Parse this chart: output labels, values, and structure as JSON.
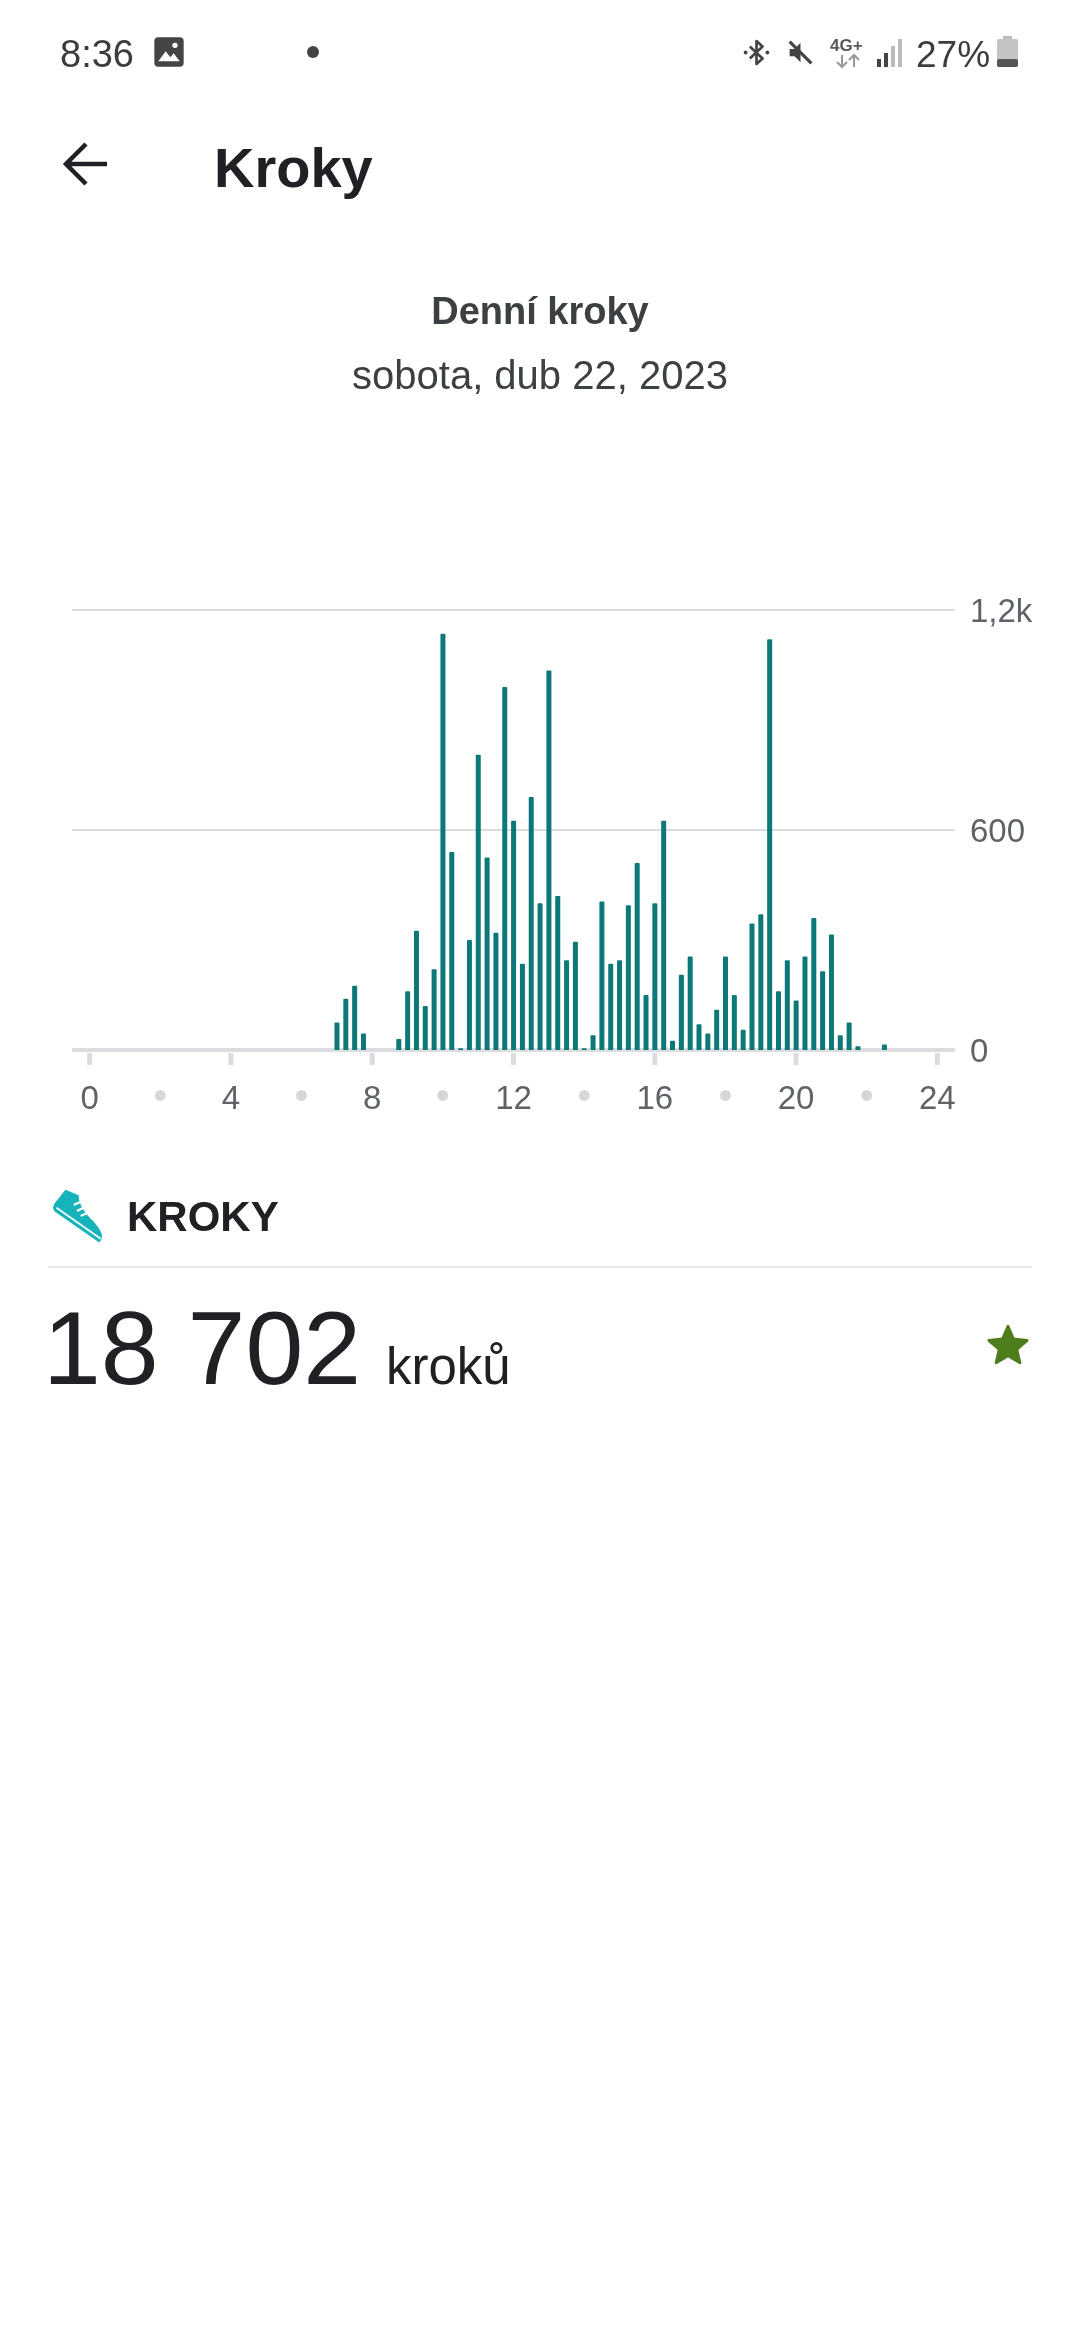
{
  "chart_data": {
    "type": "bar",
    "title": "Denní kroky",
    "subtitle": "sobota, dub 22, 2023",
    "x": [
      7,
      7.25,
      7.5,
      7.75,
      8.75,
      9,
      9.25,
      9.5,
      9.75,
      10,
      10.25,
      10.5,
      10.75,
      11,
      11.25,
      11.5,
      11.75,
      12,
      12.25,
      12.5,
      12.75,
      13,
      13.25,
      13.5,
      13.75,
      14,
      14.25,
      14.5,
      14.75,
      15,
      15.25,
      15.5,
      15.75,
      16,
      16.25,
      16.5,
      16.75,
      17,
      17.25,
      17.5,
      17.75,
      18,
      18.25,
      18.5,
      18.75,
      19,
      19.25,
      19.5,
      19.75,
      20,
      20.25,
      20.5,
      20.75,
      21,
      21.25,
      21.5,
      21.75,
      22.5
    ],
    "values": [
      75,
      140,
      175,
      45,
      30,
      160,
      325,
      120,
      220,
      1135,
      540,
      5,
      300,
      805,
      525,
      320,
      990,
      625,
      235,
      690,
      400,
      1035,
      420,
      245,
      295,
      5,
      40,
      405,
      235,
      245,
      395,
      510,
      150,
      400,
      625,
      25,
      205,
      255,
      70,
      45,
      110,
      255,
      150,
      55,
      345,
      370,
      1120,
      160,
      245,
      135,
      255,
      360,
      215,
      315,
      40,
      75,
      10,
      15
    ],
    "color": "#0c7878",
    "xlim": [
      -0.5,
      24.5
    ],
    "xticks": [
      0,
      {
        "value": 2,
        "label": "•"
      },
      4,
      {
        "value": 6,
        "label": "•"
      },
      8,
      {
        "value": 10,
        "label": "•"
      },
      12,
      {
        "value": 14,
        "label": "•"
      },
      16,
      {
        "value": 18,
        "label": "•"
      },
      20,
      {
        "value": 22,
        "label": "•"
      },
      24
    ],
    "ylim": [
      0,
      1200
    ],
    "yticks": [
      0,
      600,
      {
        "value": 1200,
        "label": "1,2k"
      }
    ],
    "grid": "y",
    "annotations": [
      "8:36",
      "4G+",
      "27%",
      "Kroky",
      "KROKY",
      "18 702",
      "kroků"
    ]
  }
}
